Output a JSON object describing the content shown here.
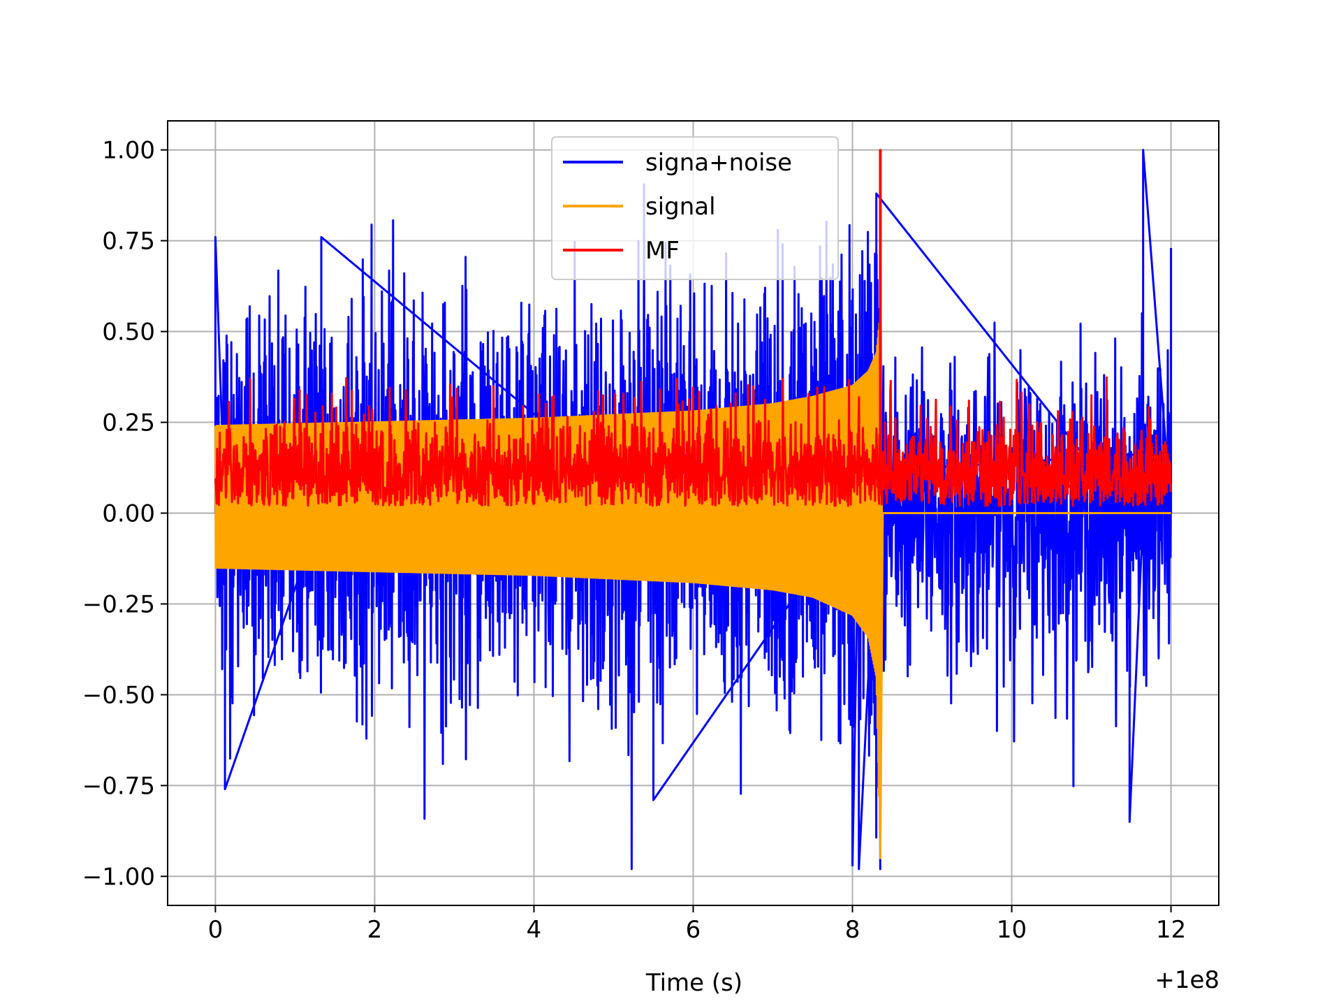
{
  "chart_data": {
    "type": "line",
    "title": "",
    "xlabel": "Time (s)",
    "ylabel": "",
    "x_offset_label": "+1e8",
    "xlim": [
      -0.6,
      12.6
    ],
    "ylim": [
      -1.08,
      1.08
    ],
    "x_ticks": [
      0,
      2,
      4,
      6,
      8,
      10,
      12
    ],
    "x_tick_labels": [
      "0",
      "2",
      "4",
      "6",
      "8",
      "10",
      "12"
    ],
    "y_ticks": [
      -1.0,
      -0.75,
      -0.5,
      -0.25,
      0.0,
      0.25,
      0.5,
      0.75,
      1.0
    ],
    "y_tick_labels": [
      "−1.00",
      "−0.75",
      "−0.50",
      "−0.25",
      "0.00",
      "0.25",
      "0.50",
      "0.75",
      "1.00"
    ],
    "grid": true,
    "legend_position": "top-center",
    "x_range": [
      0,
      12
    ],
    "series": [
      {
        "name": "signa+noise",
        "color": "#0000ff",
        "description_points": [
          {
            "x": 0.0,
            "y": 0.76
          },
          {
            "x": 0.12,
            "y": -0.76
          },
          {
            "x": 1.33,
            "y": 0.76
          },
          {
            "x": 5.5,
            "y": -0.79
          },
          {
            "x": 8.0,
            "y": -0.97
          },
          {
            "x": 8.08,
            "y": -0.98
          },
          {
            "x": 8.3,
            "y": 0.88
          },
          {
            "x": 11.48,
            "y": -0.85
          },
          {
            "x": 11.65,
            "y": 1.0
          },
          {
            "x": 12.0,
            "y": 0.73
          }
        ]
      },
      {
        "name": "signal",
        "color": "#ffa500",
        "envelope": [
          {
            "x": 0.0,
            "upper": 0.24,
            "lower": -0.15
          },
          {
            "x": 2.0,
            "upper": 0.25,
            "lower": -0.16
          },
          {
            "x": 4.0,
            "upper": 0.26,
            "lower": -0.17
          },
          {
            "x": 6.0,
            "upper": 0.28,
            "lower": -0.19
          },
          {
            "x": 7.0,
            "upper": 0.3,
            "lower": -0.21
          },
          {
            "x": 7.5,
            "upper": 0.32,
            "lower": -0.23
          },
          {
            "x": 8.0,
            "upper": 0.35,
            "lower": -0.28
          },
          {
            "x": 8.2,
            "upper": 0.39,
            "lower": -0.34
          },
          {
            "x": 8.3,
            "upper": 0.44,
            "lower": -0.45
          },
          {
            "x": 8.35,
            "upper": 0.55,
            "lower": -0.95
          },
          {
            "x": 8.37,
            "upper": 0.0,
            "lower": 0.0
          },
          {
            "x": 12.0,
            "upper": 0.0,
            "lower": 0.0
          }
        ]
      },
      {
        "name": "MF",
        "color": "#ff0000",
        "band": {
          "lower": 0.02,
          "upper": 0.28
        },
        "peak": {
          "x": 8.35,
          "y": 1.0
        }
      }
    ]
  },
  "legend": {
    "items": [
      {
        "label": "signa+noise",
        "color": "#0000ff"
      },
      {
        "label": "signal",
        "color": "#ffa500"
      },
      {
        "label": "MF",
        "color": "#ff0000"
      }
    ]
  }
}
